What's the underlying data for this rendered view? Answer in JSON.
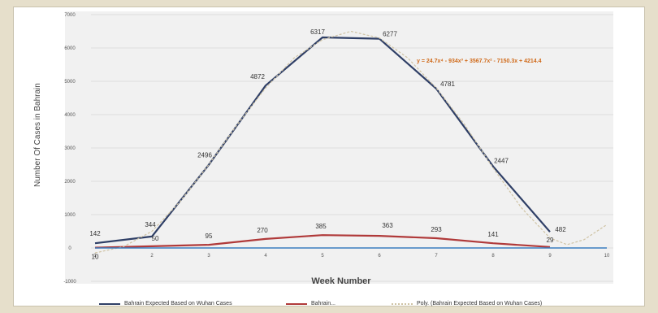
{
  "chart_data": {
    "type": "line",
    "title": "",
    "xlabel": "Week Number",
    "ylabel": "Number Of Cases in Bahrain",
    "xlim": [
      1,
      10
    ],
    "ylim": [
      -1000,
      7000
    ],
    "x_ticks": [
      "1",
      "2",
      "3",
      "4",
      "5",
      "6",
      "7",
      "8",
      "9",
      "10"
    ],
    "y_ticks": [
      "-1000",
      "0",
      "1000",
      "2000",
      "3000",
      "4000",
      "5000",
      "6000",
      "7000"
    ],
    "grid": true,
    "legend_position": "bottom",
    "series": [
      {
        "name": "Bahrain Expected Based on Wuhan Cases",
        "color": "#2f3f66",
        "x": [
          1,
          2,
          3,
          4,
          5,
          6,
          7,
          8,
          9
        ],
        "values": [
          142,
          344,
          2496,
          4872,
          6317,
          6277,
          4781,
          2447,
          482
        ],
        "labels": [
          "142",
          "344",
          "2496",
          "4872",
          "6317",
          "6277",
          "4781",
          "2447",
          "482"
        ]
      },
      {
        "name": "Bahrain...",
        "color": "#b03a3a",
        "x": [
          1,
          2,
          3,
          4,
          5,
          6,
          7,
          8,
          9
        ],
        "values": [
          10,
          50,
          95,
          270,
          385,
          363,
          293,
          141,
          29
        ],
        "labels": [
          "10",
          "50",
          "95",
          "270",
          "385",
          "363",
          "293",
          "141",
          "29"
        ]
      },
      {
        "name": "Poly. (Bahrain Expected Based on Wuhan Cases)",
        "color": "#cfc3a4",
        "x": [
          1,
          1.5,
          2,
          2.5,
          3,
          3.5,
          4,
          4.5,
          5,
          5.5,
          6,
          6.5,
          7,
          7.5,
          8,
          8.5,
          9,
          9.3,
          9.6,
          10
        ],
        "values": [
          -150,
          40,
          500,
          1400,
          2500,
          3700,
          4800,
          5700,
          6250,
          6500,
          6300,
          5700,
          4800,
          3700,
          2400,
          1200,
          300,
          100,
          250,
          700
        ]
      },
      {
        "name": "",
        "color": "#3a7dc0",
        "x": [
          1,
          10
        ],
        "values": [
          0,
          0
        ]
      }
    ],
    "annotations": [
      {
        "text": "y = 24.7x⁴ - 934x³ + 3567.7x² - 7150.3x + 4214.4",
        "color": "#d06a1a"
      }
    ]
  }
}
